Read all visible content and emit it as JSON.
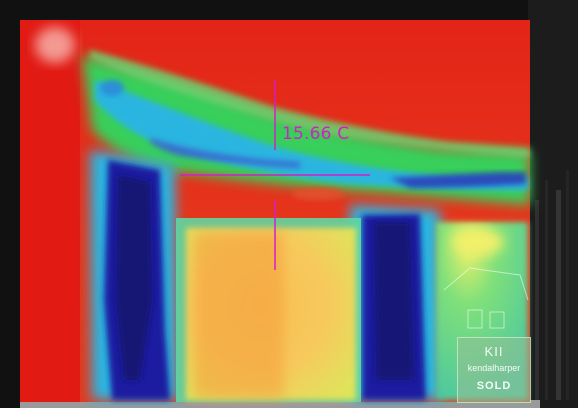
{
  "thermal_image": {
    "measurement": {
      "temperature_label": "15.66 C",
      "crosshair_color": "#d020c8"
    },
    "palette": {
      "hot": "#e8231b",
      "warm": "#f39a2b",
      "mild": "#f7e24a",
      "cool": "#34d156",
      "cold": "#2bb5e0",
      "coldest": "#1a1a9a"
    },
    "sign": {
      "logo": "KII",
      "brand": "kendalharper",
      "status": "SOLD"
    }
  }
}
